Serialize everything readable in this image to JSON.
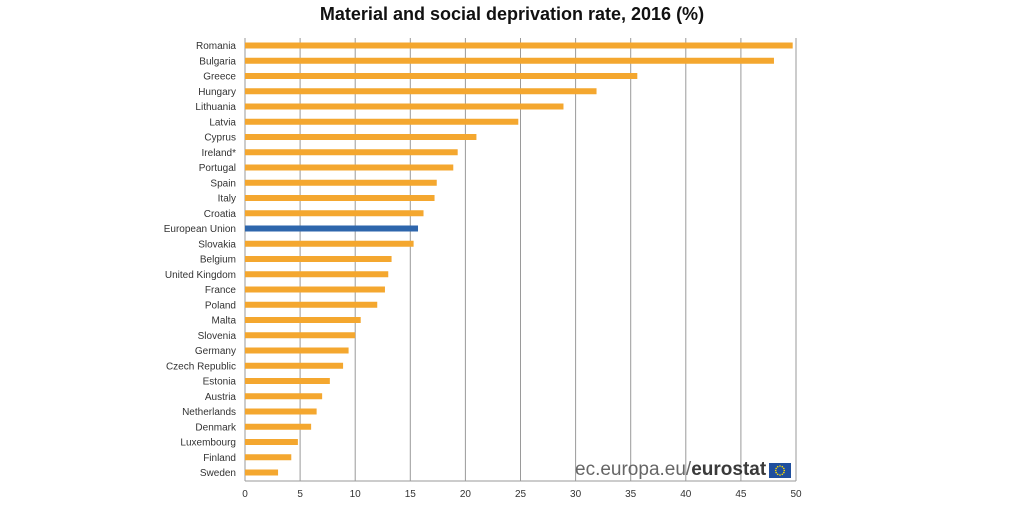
{
  "chart_data": {
    "type": "bar",
    "orientation": "horizontal",
    "title": "Material and social deprivation rate, 2016 (%)",
    "categories": [
      "Romania",
      "Bulgaria",
      "Greece",
      "Hungary",
      "Lithuania",
      "Latvia",
      "Cyprus",
      "Ireland*",
      "Portugal",
      "Spain",
      "Italy",
      "Croatia",
      "European Union",
      "Slovakia",
      "Belgium",
      "United Kingdom",
      "France",
      "Poland",
      "Malta",
      "Slovenia",
      "Germany",
      "Czech Republic",
      "Estonia",
      "Austria",
      "Netherlands",
      "Denmark",
      "Luxembourg",
      "Finland",
      "Sweden"
    ],
    "values": [
      49.7,
      48.0,
      35.6,
      31.9,
      28.9,
      24.8,
      21.0,
      19.3,
      18.9,
      17.4,
      17.2,
      16.2,
      15.7,
      15.3,
      13.3,
      13.0,
      12.7,
      12.0,
      10.5,
      10.0,
      9.4,
      8.9,
      7.7,
      7.0,
      6.5,
      6.0,
      4.8,
      4.2,
      3.0
    ],
    "highlight_category": "European Union",
    "colors": {
      "default": "#F4A72F",
      "highlight": "#2E66AC",
      "grid": "#9a9a9a"
    },
    "xlim": [
      0,
      50
    ],
    "xticks": [
      0,
      5,
      10,
      15,
      20,
      25,
      30,
      35,
      40,
      45,
      50
    ],
    "xlabel": "",
    "ylabel": "",
    "grid": true,
    "legend": "none"
  },
  "watermark": {
    "site": "ec.europa.eu/",
    "brand": "eurostat",
    "flag_icon": "eu-flag-icon"
  }
}
